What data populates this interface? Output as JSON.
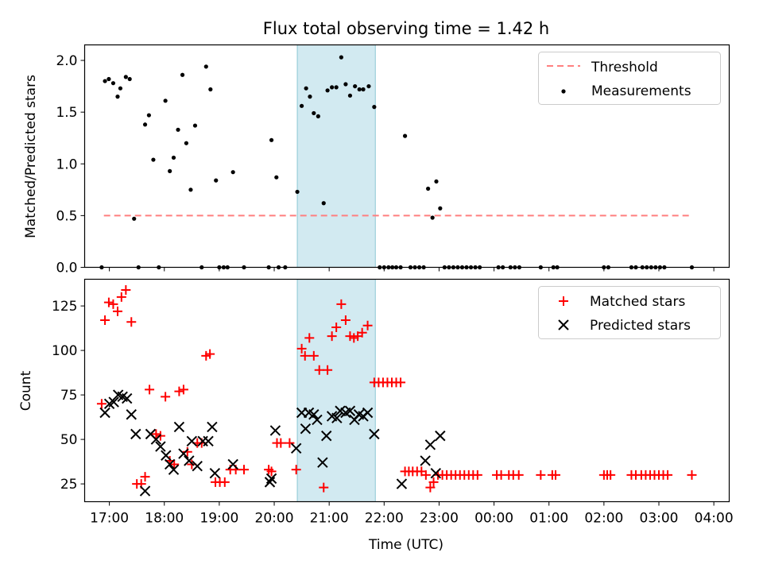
{
  "chart_data": [
    {
      "type": "scatter",
      "panel": "top",
      "title": "Flux total observing time = 1.42 h",
      "xlabel": "",
      "ylabel": "Matched/Predicted stars",
      "xlim": [
        16.55,
        28.28
      ],
      "ylim": [
        0.0,
        2.15
      ],
      "yticks": [
        0.0,
        0.5,
        1.0,
        1.5,
        2.0
      ],
      "ytick_labels": [
        "0.0",
        "0.5",
        "1.0",
        "1.5",
        "2.0"
      ],
      "legend": {
        "position": "top-right",
        "threshold_label": "Threshold",
        "measurements_label": "Measurements"
      },
      "colors": {
        "threshold": "#ff7f7f",
        "measurements": "#000000",
        "span": "#add8e6"
      },
      "threshold": {
        "value": 0.5,
        "x_start": 16.9,
        "x_end": 27.6
      },
      "highlight_span": [
        20.42,
        21.84
      ],
      "measurements": [
        [
          16.86,
          0.0
        ],
        [
          16.92,
          1.8
        ],
        [
          16.99,
          1.82
        ],
        [
          17.07,
          1.78
        ],
        [
          17.15,
          1.65
        ],
        [
          17.2,
          1.73
        ],
        [
          17.3,
          1.84
        ],
        [
          17.37,
          1.82
        ],
        [
          17.45,
          0.47
        ],
        [
          17.53,
          0.0
        ],
        [
          17.65,
          1.38
        ],
        [
          17.72,
          1.47
        ],
        [
          17.8,
          1.04
        ],
        [
          17.9,
          0.0
        ],
        [
          18.02,
          1.61
        ],
        [
          18.1,
          0.93
        ],
        [
          18.17,
          1.06
        ],
        [
          18.25,
          1.33
        ],
        [
          18.33,
          1.86
        ],
        [
          18.4,
          1.2
        ],
        [
          18.48,
          0.75
        ],
        [
          18.56,
          1.37
        ],
        [
          18.68,
          0.0
        ],
        [
          18.76,
          1.94
        ],
        [
          18.84,
          1.72
        ],
        [
          18.94,
          0.84
        ],
        [
          19.0,
          0.0
        ],
        [
          19.08,
          0.0
        ],
        [
          19.15,
          0.0
        ],
        [
          19.25,
          0.92
        ],
        [
          19.45,
          0.0
        ],
        [
          19.9,
          0.0
        ],
        [
          19.95,
          1.23
        ],
        [
          20.04,
          0.87
        ],
        [
          20.08,
          0.0
        ],
        [
          20.2,
          0.0
        ],
        [
          20.42,
          0.73
        ],
        [
          20.5,
          1.56
        ],
        [
          20.58,
          1.73
        ],
        [
          20.65,
          1.65
        ],
        [
          20.72,
          1.49
        ],
        [
          20.8,
          1.46
        ],
        [
          20.9,
          0.62
        ],
        [
          20.97,
          1.71
        ],
        [
          21.05,
          1.74
        ],
        [
          21.13,
          1.74
        ],
        [
          21.22,
          2.03
        ],
        [
          21.3,
          1.77
        ],
        [
          21.38,
          1.66
        ],
        [
          21.47,
          1.75
        ],
        [
          21.55,
          1.72
        ],
        [
          21.62,
          1.72
        ],
        [
          21.72,
          1.75
        ],
        [
          21.82,
          1.55
        ],
        [
          21.92,
          0.0
        ],
        [
          22.0,
          0.0
        ],
        [
          22.08,
          0.0
        ],
        [
          22.15,
          0.0
        ],
        [
          22.22,
          0.0
        ],
        [
          22.3,
          0.0
        ],
        [
          22.38,
          1.27
        ],
        [
          22.48,
          0.0
        ],
        [
          22.56,
          0.0
        ],
        [
          22.64,
          0.0
        ],
        [
          22.72,
          0.0
        ],
        [
          22.8,
          0.76
        ],
        [
          22.88,
          0.48
        ],
        [
          22.95,
          0.83
        ],
        [
          23.02,
          0.57
        ],
        [
          23.1,
          0.0
        ],
        [
          23.18,
          0.0
        ],
        [
          23.26,
          0.0
        ],
        [
          23.34,
          0.0
        ],
        [
          23.42,
          0.0
        ],
        [
          23.5,
          0.0
        ],
        [
          23.58,
          0.0
        ],
        [
          23.66,
          0.0
        ],
        [
          23.74,
          0.0
        ],
        [
          24.08,
          0.0
        ],
        [
          24.16,
          0.0
        ],
        [
          24.3,
          0.0
        ],
        [
          24.38,
          0.0
        ],
        [
          24.46,
          0.0
        ],
        [
          24.85,
          0.0
        ],
        [
          25.08,
          0.0
        ],
        [
          25.15,
          0.0
        ],
        [
          26.0,
          0.0
        ],
        [
          26.08,
          0.0
        ],
        [
          26.5,
          0.0
        ],
        [
          26.58,
          0.0
        ],
        [
          26.7,
          0.0
        ],
        [
          26.78,
          0.0
        ],
        [
          26.86,
          0.0
        ],
        [
          26.94,
          0.0
        ],
        [
          27.02,
          0.0
        ],
        [
          27.1,
          0.0
        ],
        [
          27.6,
          0.0
        ]
      ]
    },
    {
      "type": "scatter",
      "panel": "bottom",
      "title": "",
      "xlabel": "Time (UTC)",
      "ylabel": "Count",
      "xlim": [
        16.55,
        28.28
      ],
      "ylim": [
        15,
        140
      ],
      "yticks": [
        25,
        50,
        75,
        100,
        125
      ],
      "ytick_labels": [
        "25",
        "50",
        "75",
        "100",
        "125"
      ],
      "xticks": [
        17,
        18,
        19,
        20,
        21,
        22,
        23,
        24,
        25,
        26,
        27,
        28
      ],
      "xtick_labels": [
        "17:00",
        "18:00",
        "19:00",
        "20:00",
        "21:00",
        "22:00",
        "23:00",
        "00:00",
        "01:00",
        "02:00",
        "03:00",
        "04:00"
      ],
      "legend": {
        "position": "top-right",
        "matched_label": "Matched stars",
        "predicted_label": "Predicted stars"
      },
      "colors": {
        "matched": "#ff0000",
        "predicted": "#000000",
        "span": "#add8e6"
      },
      "highlight_span": [
        20.42,
        21.84
      ],
      "series": [
        {
          "name": "Matched stars",
          "points": [
            [
              16.86,
              70
            ],
            [
              16.92,
              117
            ],
            [
              16.99,
              127
            ],
            [
              17.07,
              126
            ],
            [
              17.15,
              122
            ],
            [
              17.22,
              130
            ],
            [
              17.3,
              134
            ],
            [
              17.4,
              116
            ],
            [
              17.5,
              25
            ],
            [
              17.58,
              25
            ],
            [
              17.65,
              29
            ],
            [
              17.73,
              78
            ],
            [
              17.85,
              53
            ],
            [
              17.93,
              52
            ],
            [
              18.02,
              74
            ],
            [
              18.1,
              38
            ],
            [
              18.18,
              36
            ],
            [
              18.27,
              77
            ],
            [
              18.35,
              78
            ],
            [
              18.42,
              43
            ],
            [
              18.5,
              36
            ],
            [
              18.6,
              48
            ],
            [
              18.68,
              48
            ],
            [
              18.76,
              97
            ],
            [
              18.83,
              98
            ],
            [
              18.93,
              26
            ],
            [
              19.01,
              26
            ],
            [
              19.1,
              26
            ],
            [
              19.2,
              33
            ],
            [
              19.3,
              33
            ],
            [
              19.45,
              33
            ],
            [
              19.9,
              33
            ],
            [
              19.95,
              32
            ],
            [
              20.05,
              48
            ],
            [
              20.12,
              48
            ],
            [
              20.28,
              48
            ],
            [
              20.4,
              33
            ],
            [
              20.5,
              101
            ],
            [
              20.56,
              97
            ],
            [
              20.64,
              107
            ],
            [
              20.72,
              97
            ],
            [
              20.82,
              89
            ],
            [
              20.9,
              23
            ],
            [
              20.97,
              89
            ],
            [
              21.05,
              108
            ],
            [
              21.13,
              113
            ],
            [
              21.22,
              126
            ],
            [
              21.3,
              117
            ],
            [
              21.38,
              108
            ],
            [
              21.45,
              107
            ],
            [
              21.52,
              108
            ],
            [
              21.6,
              110
            ],
            [
              21.7,
              114
            ],
            [
              21.82,
              82
            ],
            [
              21.9,
              82
            ],
            [
              21.98,
              82
            ],
            [
              22.06,
              82
            ],
            [
              22.14,
              82
            ],
            [
              22.22,
              82
            ],
            [
              22.3,
              82
            ],
            [
              22.38,
              32
            ],
            [
              22.45,
              32
            ],
            [
              22.52,
              32
            ],
            [
              22.6,
              32
            ],
            [
              22.68,
              32
            ],
            [
              22.76,
              30
            ],
            [
              22.84,
              23
            ],
            [
              22.9,
              26
            ],
            [
              22.98,
              30
            ],
            [
              23.06,
              30
            ],
            [
              23.14,
              30
            ],
            [
              23.22,
              30
            ],
            [
              23.3,
              30
            ],
            [
              23.38,
              30
            ],
            [
              23.46,
              30
            ],
            [
              23.54,
              30
            ],
            [
              23.62,
              30
            ],
            [
              23.7,
              30
            ],
            [
              24.05,
              30
            ],
            [
              24.13,
              30
            ],
            [
              24.27,
              30
            ],
            [
              24.35,
              30
            ],
            [
              24.45,
              30
            ],
            [
              24.85,
              30
            ],
            [
              25.06,
              30
            ],
            [
              25.12,
              30
            ],
            [
              26.0,
              30
            ],
            [
              26.06,
              30
            ],
            [
              26.12,
              30
            ],
            [
              26.5,
              30
            ],
            [
              26.58,
              30
            ],
            [
              26.68,
              30
            ],
            [
              26.76,
              30
            ],
            [
              26.84,
              30
            ],
            [
              26.92,
              30
            ],
            [
              27.0,
              30
            ],
            [
              27.08,
              30
            ],
            [
              27.16,
              30
            ],
            [
              27.6,
              30
            ]
          ]
        },
        {
          "name": "Predicted stars",
          "points": [
            [
              16.92,
              65
            ],
            [
              17.0,
              70
            ],
            [
              17.08,
              71
            ],
            [
              17.16,
              75
            ],
            [
              17.24,
              74
            ],
            [
              17.32,
              73
            ],
            [
              17.4,
              64
            ],
            [
              17.48,
              53
            ],
            [
              17.65,
              21
            ],
            [
              17.75,
              53
            ],
            [
              17.85,
              50
            ],
            [
              17.93,
              46
            ],
            [
              18.03,
              41
            ],
            [
              18.1,
              36
            ],
            [
              18.17,
              33
            ],
            [
              18.27,
              57
            ],
            [
              18.35,
              42
            ],
            [
              18.45,
              38
            ],
            [
              18.5,
              49
            ],
            [
              18.6,
              35
            ],
            [
              18.7,
              49
            ],
            [
              18.8,
              49
            ],
            [
              18.87,
              57
            ],
            [
              18.92,
              31
            ],
            [
              19.25,
              36
            ],
            [
              19.92,
              26
            ],
            [
              19.95,
              28
            ],
            [
              20.02,
              55
            ],
            [
              20.4,
              45
            ],
            [
              20.5,
              65
            ],
            [
              20.57,
              56
            ],
            [
              20.63,
              65
            ],
            [
              20.72,
              64
            ],
            [
              20.78,
              61
            ],
            [
              20.88,
              37
            ],
            [
              20.95,
              52
            ],
            [
              21.05,
              63
            ],
            [
              21.14,
              62
            ],
            [
              21.2,
              66
            ],
            [
              21.3,
              65
            ],
            [
              21.38,
              66
            ],
            [
              21.46,
              61
            ],
            [
              21.54,
              64
            ],
            [
              21.62,
              63
            ],
            [
              21.7,
              65
            ],
            [
              21.82,
              53
            ],
            [
              22.32,
              25
            ],
            [
              22.75,
              38
            ],
            [
              22.84,
              47
            ],
            [
              22.94,
              31
            ],
            [
              23.02,
              52
            ]
          ]
        }
      ]
    }
  ]
}
